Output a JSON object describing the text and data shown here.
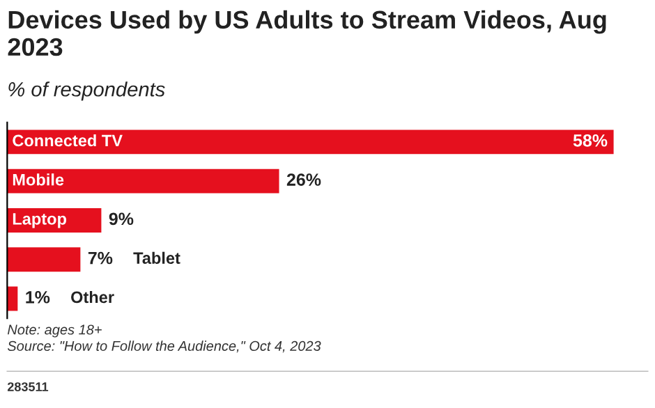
{
  "chart_data": {
    "type": "bar",
    "orientation": "horizontal",
    "title": "Devices Used by US Adults to Stream Videos, Aug 2023",
    "subtitle": "% of respondents",
    "categories": [
      "Connected TV",
      "Mobile",
      "Laptop",
      "Tablet",
      "Other"
    ],
    "values": [
      58,
      26,
      9,
      7,
      1
    ],
    "value_labels": [
      "58%",
      "26%",
      "9%",
      "7%",
      "1%"
    ],
    "color": "#e5101e",
    "annotations": [
      "Note: ages 18+",
      "Source: \"How to Follow the Audience,\" Oct 4, 2023",
      "283511"
    ]
  }
}
